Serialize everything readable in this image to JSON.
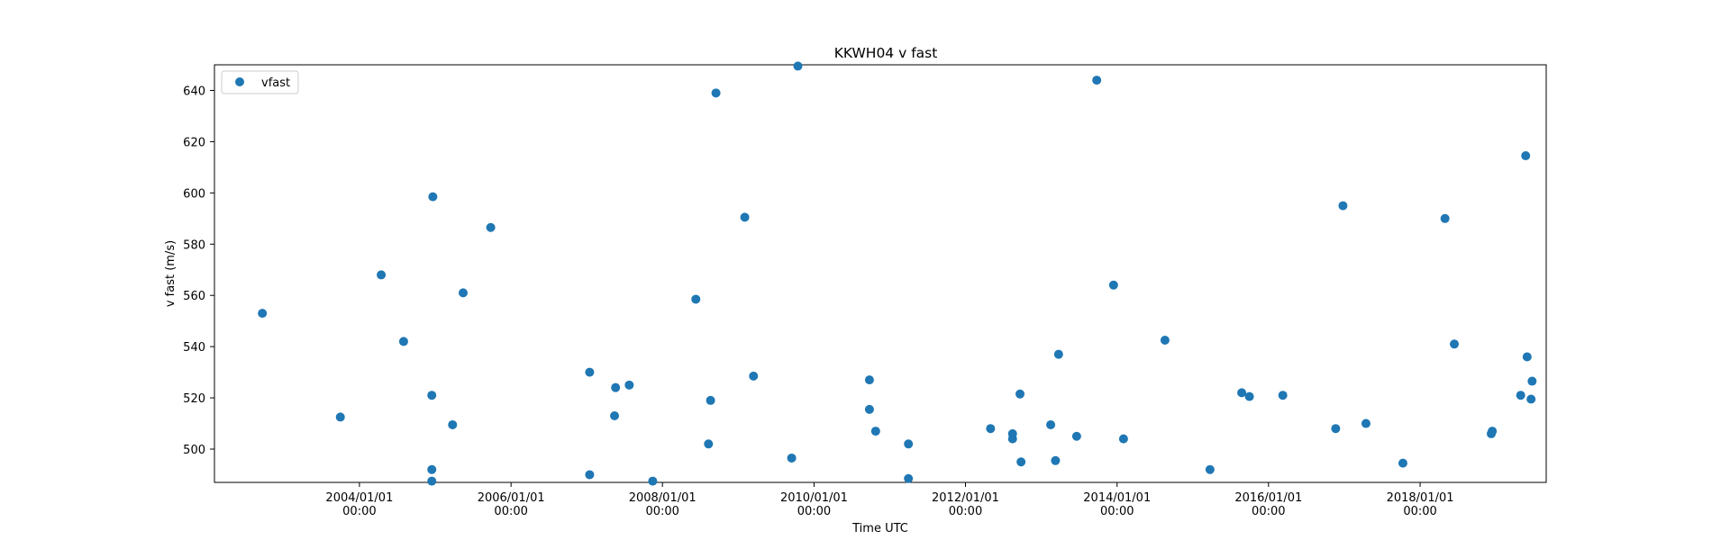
{
  "chart_data": {
    "type": "scatter",
    "title": "KKWH04 v fast",
    "xlabel": "Time UTC",
    "ylabel": "v fast (m/s)",
    "x_axis_type": "date",
    "xlim": [
      "2002-02-01",
      "2019-09-01"
    ],
    "ylim": [
      487,
      650
    ],
    "x_ticks": [
      {
        "date": "2004-01-01",
        "line1": "2004/01/01",
        "line2": "00:00"
      },
      {
        "date": "2006-01-01",
        "line1": "2006/01/01",
        "line2": "00:00"
      },
      {
        "date": "2008-01-01",
        "line1": "2008/01/01",
        "line2": "00:00"
      },
      {
        "date": "2010-01-01",
        "line1": "2010/01/01",
        "line2": "00:00"
      },
      {
        "date": "2012-01-01",
        "line1": "2012/01/01",
        "line2": "00:00"
      },
      {
        "date": "2014-01-01",
        "line1": "2014/01/01",
        "line2": "00:00"
      },
      {
        "date": "2016-01-01",
        "line1": "2016/01/01",
        "line2": "00:00"
      },
      {
        "date": "2018-01-01",
        "line1": "2018/01/01",
        "line2": "00:00"
      }
    ],
    "y_ticks": [
      500,
      520,
      540,
      560,
      580,
      600,
      620,
      640
    ],
    "grid": false,
    "legend_position": "top-left",
    "series": [
      {
        "name": "vfast",
        "color": "#1f77b4",
        "marker": "circle",
        "points": [
          [
            "2002-09-20",
            553
          ],
          [
            "2003-10-01",
            512.5
          ],
          [
            "2004-04-15",
            568
          ],
          [
            "2004-08-01",
            542
          ],
          [
            "2004-12-15",
            521
          ],
          [
            "2004-12-15",
            492
          ],
          [
            "2004-12-15",
            487.5
          ],
          [
            "2004-12-20",
            598.5
          ],
          [
            "2005-03-25",
            509.5
          ],
          [
            "2005-05-15",
            561
          ],
          [
            "2005-09-25",
            586.5
          ],
          [
            "2007-01-15",
            530
          ],
          [
            "2007-01-15",
            490
          ],
          [
            "2007-05-15",
            513
          ],
          [
            "2007-05-20",
            524
          ],
          [
            "2007-07-25",
            525
          ],
          [
            "2007-11-15",
            487.5
          ],
          [
            "2008-06-10",
            558.5
          ],
          [
            "2008-08-10",
            502
          ],
          [
            "2008-08-20",
            519
          ],
          [
            "2008-09-15",
            639
          ],
          [
            "2009-02-01",
            590.5
          ],
          [
            "2009-03-15",
            528.5
          ],
          [
            "2009-09-15",
            496.5
          ],
          [
            "2009-10-15",
            649.5
          ],
          [
            "2010-09-25",
            527
          ],
          [
            "2010-09-25",
            515.5
          ],
          [
            "2010-10-25",
            507
          ],
          [
            "2011-04-01",
            502
          ],
          [
            "2011-04-01",
            488.5
          ],
          [
            "2012-05-01",
            508
          ],
          [
            "2012-08-15",
            506
          ],
          [
            "2012-08-15",
            504
          ],
          [
            "2012-09-20",
            521.5
          ],
          [
            "2012-09-25",
            495
          ],
          [
            "2013-02-15",
            509.5
          ],
          [
            "2013-03-10",
            495.5
          ],
          [
            "2013-03-25",
            537
          ],
          [
            "2013-06-20",
            505
          ],
          [
            "2013-09-25",
            644
          ],
          [
            "2013-12-15",
            564
          ],
          [
            "2014-02-01",
            504
          ],
          [
            "2014-08-20",
            542.5
          ],
          [
            "2015-03-25",
            492
          ],
          [
            "2015-08-25",
            522
          ],
          [
            "2015-10-01",
            520.5
          ],
          [
            "2016-03-10",
            521
          ],
          [
            "2016-11-20",
            508
          ],
          [
            "2016-12-25",
            595
          ],
          [
            "2017-04-15",
            510
          ],
          [
            "2017-10-10",
            494.5
          ],
          [
            "2018-05-01",
            590
          ],
          [
            "2018-06-15",
            541
          ],
          [
            "2018-12-10",
            506
          ],
          [
            "2018-12-15",
            507
          ],
          [
            "2019-05-01",
            521
          ],
          [
            "2019-05-25",
            614.5
          ],
          [
            "2019-06-01",
            536
          ],
          [
            "2019-06-20",
            519.5
          ],
          [
            "2019-06-25",
            526.5
          ]
        ]
      }
    ]
  }
}
